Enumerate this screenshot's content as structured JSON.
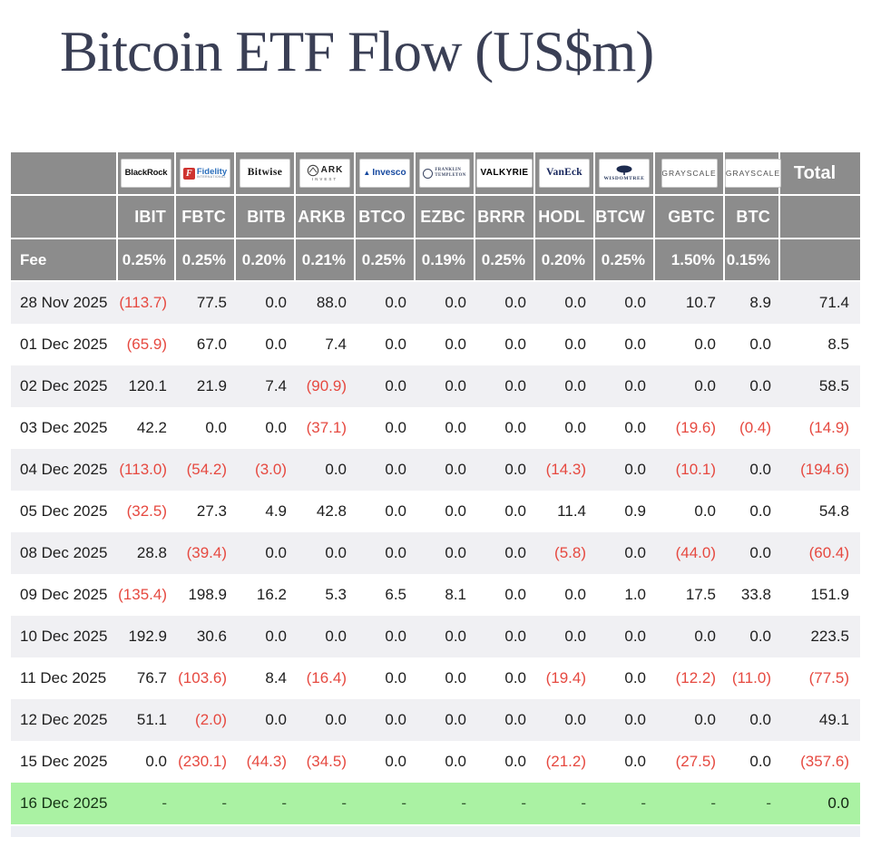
{
  "title": "Bitcoin ETF Flow (US$m)",
  "colors": {
    "header_bg": "#8c8c8c",
    "negative_red": "#e64940",
    "green_row": "#aaf2a3",
    "stripe_gray": "#f0f0f3",
    "title_navy": "#3a3f55"
  },
  "table": {
    "fee_label": "Fee",
    "total_label": "Total",
    "columns": [
      {
        "issuer": "BlackRock",
        "logo": "blackrock",
        "logo_text": "BlackRock",
        "ticker": "IBIT",
        "fee": "0.25%"
      },
      {
        "issuer": "Fidelity",
        "logo": "fidelity",
        "logo_icon": "F",
        "logo_text": "Fidelity",
        "logo_sub": "INTERNATIONAL",
        "ticker": "FBTC",
        "fee": "0.25%"
      },
      {
        "issuer": "Bitwise",
        "logo": "bitwise",
        "logo_text": "Bitwise",
        "ticker": "BITB",
        "fee": "0.20%"
      },
      {
        "issuer": "ARK Invest",
        "logo": "ark",
        "logo_text": "ARK",
        "logo_sub": "INVEST",
        "ticker": "ARKB",
        "fee": "0.21%"
      },
      {
        "issuer": "Invesco",
        "logo": "invesco",
        "logo_text": "Invesco",
        "ticker": "BTCO",
        "fee": "0.25%"
      },
      {
        "issuer": "Franklin Templeton",
        "logo": "franklin",
        "logo_text": "FRANKLIN",
        "logo_sub": "TEMPLETON",
        "ticker": "EZBC",
        "fee": "0.19%"
      },
      {
        "issuer": "Valkyrie",
        "logo": "valkyrie",
        "logo_text": "VALKYRIE",
        "ticker": "BRRR",
        "fee": "0.25%"
      },
      {
        "issuer": "VanEck",
        "logo": "vaneck",
        "logo_text": "VanEck",
        "ticker": "HODL",
        "fee": "0.20%"
      },
      {
        "issuer": "WisdomTree",
        "logo": "wisdomtree",
        "logo_text": "WISDOMTREE",
        "ticker": "BTCW",
        "fee": "0.25%"
      },
      {
        "issuer": "Grayscale",
        "logo": "grayscale",
        "logo_text": "GRAYSCALE",
        "ticker": "GBTC",
        "fee": "1.50%"
      },
      {
        "issuer": "Grayscale",
        "logo": "grayscale",
        "logo_text": "GRAYSCALE",
        "ticker": "BTC",
        "fee": "0.15%"
      }
    ],
    "rows": [
      {
        "date": "28 Nov 2025",
        "values": [
          "(113.7)",
          "77.5",
          "0.0",
          "88.0",
          "0.0",
          "0.0",
          "0.0",
          "0.0",
          "0.0",
          "10.7",
          "8.9"
        ],
        "total": "71.4",
        "highlight": ""
      },
      {
        "date": "01 Dec 2025",
        "values": [
          "(65.9)",
          "67.0",
          "0.0",
          "7.4",
          "0.0",
          "0.0",
          "0.0",
          "0.0",
          "0.0",
          "0.0",
          "0.0"
        ],
        "total": "8.5",
        "highlight": ""
      },
      {
        "date": "02 Dec 2025",
        "values": [
          "120.1",
          "21.9",
          "7.4",
          "(90.9)",
          "0.0",
          "0.0",
          "0.0",
          "0.0",
          "0.0",
          "0.0",
          "0.0"
        ],
        "total": "58.5",
        "highlight": ""
      },
      {
        "date": "03 Dec 2025",
        "values": [
          "42.2",
          "0.0",
          "0.0",
          "(37.1)",
          "0.0",
          "0.0",
          "0.0",
          "0.0",
          "0.0",
          "(19.6)",
          "(0.4)"
        ],
        "total": "(14.9)",
        "highlight": ""
      },
      {
        "date": "04 Dec 2025",
        "values": [
          "(113.0)",
          "(54.2)",
          "(3.0)",
          "0.0",
          "0.0",
          "0.0",
          "0.0",
          "(14.3)",
          "0.0",
          "(10.1)",
          "0.0"
        ],
        "total": "(194.6)",
        "highlight": ""
      },
      {
        "date": "05 Dec 2025",
        "values": [
          "(32.5)",
          "27.3",
          "4.9",
          "42.8",
          "0.0",
          "0.0",
          "0.0",
          "11.4",
          "0.9",
          "0.0",
          "0.0"
        ],
        "total": "54.8",
        "highlight": ""
      },
      {
        "date": "08 Dec 2025",
        "values": [
          "28.8",
          "(39.4)",
          "0.0",
          "0.0",
          "0.0",
          "0.0",
          "0.0",
          "(5.8)",
          "0.0",
          "(44.0)",
          "0.0"
        ],
        "total": "(60.4)",
        "highlight": ""
      },
      {
        "date": "09 Dec 2025",
        "values": [
          "(135.4)",
          "198.9",
          "16.2",
          "5.3",
          "6.5",
          "8.1",
          "0.0",
          "0.0",
          "1.0",
          "17.5",
          "33.8"
        ],
        "total": "151.9",
        "highlight": ""
      },
      {
        "date": "10 Dec 2025",
        "values": [
          "192.9",
          "30.6",
          "0.0",
          "0.0",
          "0.0",
          "0.0",
          "0.0",
          "0.0",
          "0.0",
          "0.0",
          "0.0"
        ],
        "total": "223.5",
        "highlight": ""
      },
      {
        "date": "11 Dec 2025",
        "values": [
          "76.7",
          "(103.6)",
          "8.4",
          "(16.4)",
          "0.0",
          "0.0",
          "0.0",
          "(19.4)",
          "0.0",
          "(12.2)",
          "(11.0)"
        ],
        "total": "(77.5)",
        "highlight": ""
      },
      {
        "date": "12 Dec 2025",
        "values": [
          "51.1",
          "(2.0)",
          "0.0",
          "0.0",
          "0.0",
          "0.0",
          "0.0",
          "0.0",
          "0.0",
          "0.0",
          "0.0"
        ],
        "total": "49.1",
        "highlight": ""
      },
      {
        "date": "15 Dec 2025",
        "values": [
          "0.0",
          "(230.1)",
          "(44.3)",
          "(34.5)",
          "0.0",
          "0.0",
          "0.0",
          "(21.2)",
          "0.0",
          "(27.5)",
          "0.0"
        ],
        "total": "(357.6)",
        "highlight": ""
      },
      {
        "date": "16 Dec 2025",
        "values": [
          "-",
          "-",
          "-",
          "-",
          "-",
          "-",
          "-",
          "-",
          "-",
          "-",
          "-"
        ],
        "total": "0.0",
        "highlight": "green"
      }
    ]
  },
  "chart_data": {
    "type": "table",
    "title": "Bitcoin ETF Flow (US$m)",
    "columns": [
      "IBIT",
      "FBTC",
      "BITB",
      "ARKB",
      "BTCO",
      "EZBC",
      "BRRR",
      "HODL",
      "BTCW",
      "GBTC",
      "BTC",
      "Total"
    ],
    "fees_percent": [
      0.25,
      0.25,
      0.2,
      0.21,
      0.25,
      0.19,
      0.25,
      0.2,
      0.25,
      1.5,
      0.15
    ],
    "rows": [
      {
        "date": "28 Nov 2025",
        "values": [
          -113.7,
          77.5,
          0.0,
          88.0,
          0.0,
          0.0,
          0.0,
          0.0,
          0.0,
          10.7,
          8.9
        ],
        "total": 71.4
      },
      {
        "date": "01 Dec 2025",
        "values": [
          -65.9,
          67.0,
          0.0,
          7.4,
          0.0,
          0.0,
          0.0,
          0.0,
          0.0,
          0.0,
          0.0
        ],
        "total": 8.5
      },
      {
        "date": "02 Dec 2025",
        "values": [
          120.1,
          21.9,
          7.4,
          -90.9,
          0.0,
          0.0,
          0.0,
          0.0,
          0.0,
          0.0,
          0.0
        ],
        "total": 58.5
      },
      {
        "date": "03 Dec 2025",
        "values": [
          42.2,
          0.0,
          0.0,
          -37.1,
          0.0,
          0.0,
          0.0,
          0.0,
          0.0,
          -19.6,
          -0.4
        ],
        "total": -14.9
      },
      {
        "date": "04 Dec 2025",
        "values": [
          -113.0,
          -54.2,
          -3.0,
          0.0,
          0.0,
          0.0,
          0.0,
          -14.3,
          0.0,
          -10.1,
          0.0
        ],
        "total": -194.6
      },
      {
        "date": "05 Dec 2025",
        "values": [
          -32.5,
          27.3,
          4.9,
          42.8,
          0.0,
          0.0,
          0.0,
          11.4,
          0.9,
          0.0,
          0.0
        ],
        "total": 54.8
      },
      {
        "date": "08 Dec 2025",
        "values": [
          28.8,
          -39.4,
          0.0,
          0.0,
          0.0,
          0.0,
          0.0,
          -5.8,
          0.0,
          -44.0,
          0.0
        ],
        "total": -60.4
      },
      {
        "date": "09 Dec 2025",
        "values": [
          -135.4,
          198.9,
          16.2,
          5.3,
          6.5,
          8.1,
          0.0,
          0.0,
          1.0,
          17.5,
          33.8
        ],
        "total": 151.9
      },
      {
        "date": "10 Dec 2025",
        "values": [
          192.9,
          30.6,
          0.0,
          0.0,
          0.0,
          0.0,
          0.0,
          0.0,
          0.0,
          0.0,
          0.0
        ],
        "total": 223.5
      },
      {
        "date": "11 Dec 2025",
        "values": [
          76.7,
          -103.6,
          8.4,
          -16.4,
          0.0,
          0.0,
          0.0,
          -19.4,
          0.0,
          -12.2,
          -11.0
        ],
        "total": -77.5
      },
      {
        "date": "12 Dec 2025",
        "values": [
          51.1,
          -2.0,
          0.0,
          0.0,
          0.0,
          0.0,
          0.0,
          0.0,
          0.0,
          0.0,
          0.0
        ],
        "total": 49.1
      },
      {
        "date": "15 Dec 2025",
        "values": [
          0.0,
          -230.1,
          -44.3,
          -34.5,
          0.0,
          0.0,
          0.0,
          -21.2,
          0.0,
          -27.5,
          0.0
        ],
        "total": -357.6
      },
      {
        "date": "16 Dec 2025",
        "values": [
          null,
          null,
          null,
          null,
          null,
          null,
          null,
          null,
          null,
          null,
          null
        ],
        "total": 0.0
      }
    ]
  }
}
